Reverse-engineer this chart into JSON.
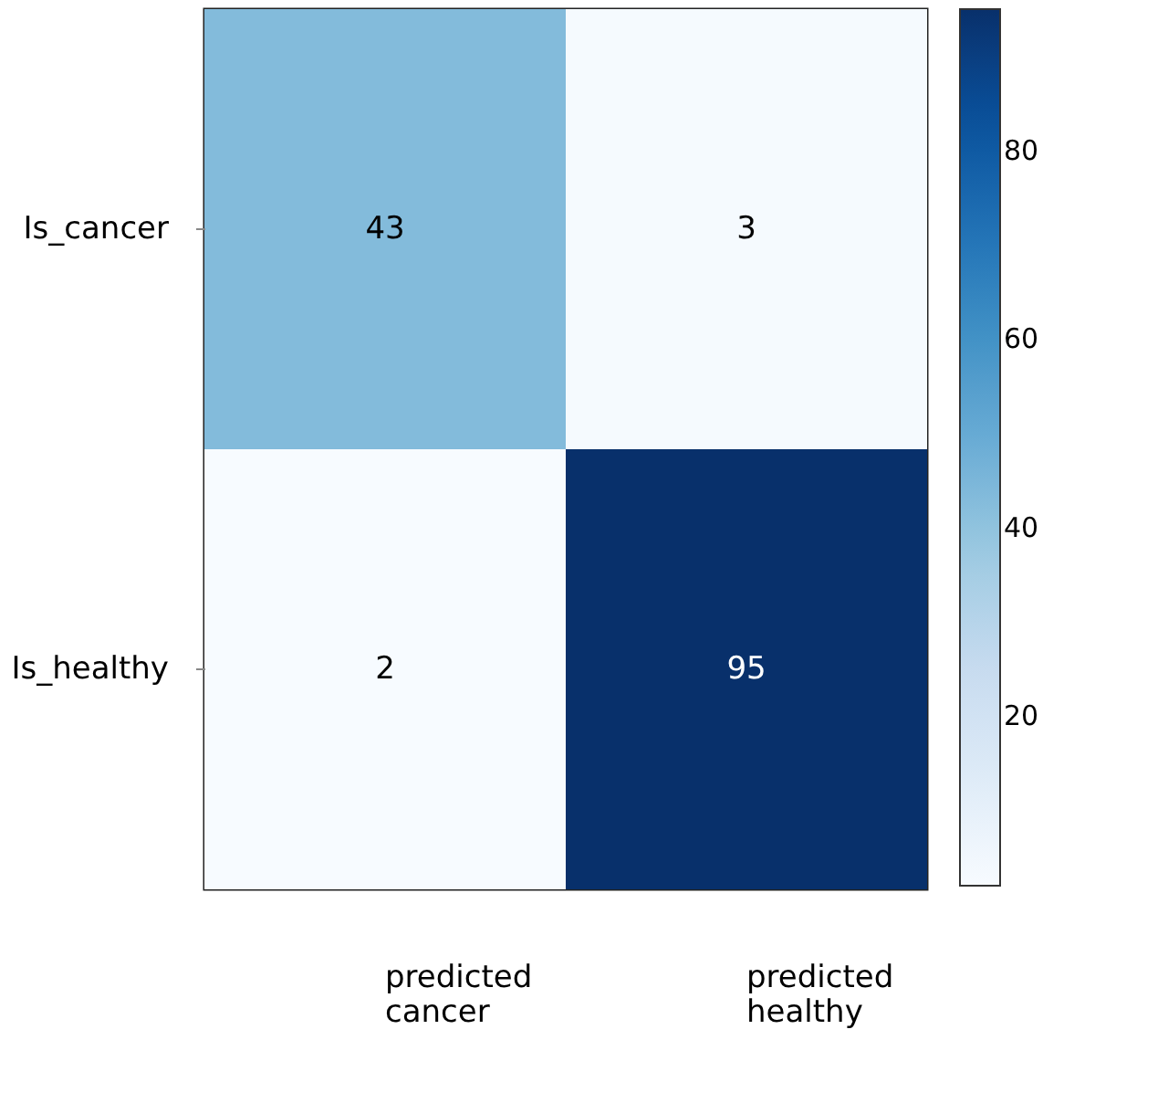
{
  "chart_data": {
    "type": "heatmap",
    "categories": [
      "predicted cancer",
      "predicted healthy"
    ],
    "y_categories": [
      "Is_cancer",
      "Is_healthy"
    ],
    "cells": [
      [
        43,
        3
      ],
      [
        2,
        95
      ]
    ],
    "clim": [
      2,
      95
    ],
    "cticks": [
      20,
      40,
      60,
      80
    ],
    "data_labels": true
  }
}
